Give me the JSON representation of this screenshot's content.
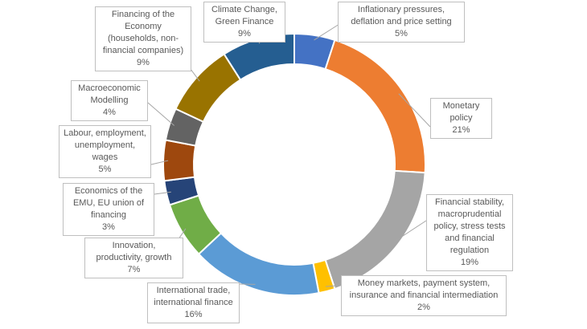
{
  "chart_data": {
    "type": "donut",
    "categories": [
      "Inflationary pressures, deflation and price setting",
      "Monetary policy",
      "Financial stability, macroprudential policy, stress tests and financial regulation",
      "Money markets, payment system, insurance and financial intermediation",
      "International trade, international finance",
      "Innovation, productivity, growth",
      "Economics of the EMU, EU union of financing",
      "Labour, employment, unemployment, wages",
      "Macroeconomic Modelling",
      "Financing of the Economy (households, non-financial companies)",
      "Climate Change, Green Finance"
    ],
    "values": [
      5,
      21,
      19,
      2,
      16,
      7,
      3,
      5,
      4,
      9,
      9
    ],
    "value_labels": [
      "5%",
      "21%",
      "19%",
      "2%",
      "16%",
      "7%",
      "3%",
      "5%",
      "4%",
      "9%",
      "9%"
    ],
    "colors": [
      "#4472c4",
      "#ed7d31",
      "#a5a5a5",
      "#ffc000",
      "#5b9bd5",
      "#70ad47",
      "#264478",
      "#9e480e",
      "#636363",
      "#997300",
      "#255e91"
    ]
  }
}
